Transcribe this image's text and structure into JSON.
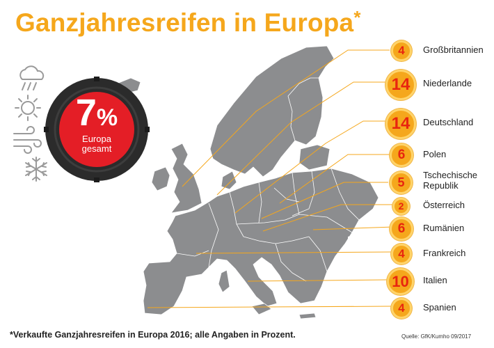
{
  "header": {
    "title": "Ganzjahresreifen in Europa",
    "title_asterisk": "*"
  },
  "europe_total": {
    "value": "7",
    "unit": "%",
    "label_line1": "Europa",
    "label_line2": "gesamt"
  },
  "weather_icons": [
    "rain-cloud-icon",
    "sun-icon",
    "wind-icon",
    "snowflake-icon"
  ],
  "countries": [
    {
      "name": "Großbritannien",
      "value": "4"
    },
    {
      "name": "Niederlande",
      "value": "14"
    },
    {
      "name": "Deutschland",
      "value": "14"
    },
    {
      "name": "Polen",
      "value": "6"
    },
    {
      "name": "Tschechische Republik",
      "name_line1": "Tschechische",
      "name_line2": "Republik",
      "value": "5"
    },
    {
      "name": "Österreich",
      "value": "2"
    },
    {
      "name": "Rumänien",
      "value": "6"
    },
    {
      "name": "Frankreich",
      "value": "4"
    },
    {
      "name": "Italien",
      "value": "10"
    },
    {
      "name": "Spanien",
      "value": "4"
    }
  ],
  "footnote": "*Verkaufte Ganzjahresreifen in Europa 2016; alle Angaben in Prozent.",
  "source": "Quelle: GfK/Kumho 09/2017",
  "colors": {
    "accent": "#f5a71c",
    "number": "#e8250f",
    "map": "#8c8d8f",
    "tyre": "#2b2b2b",
    "center": "#e41e26"
  }
}
